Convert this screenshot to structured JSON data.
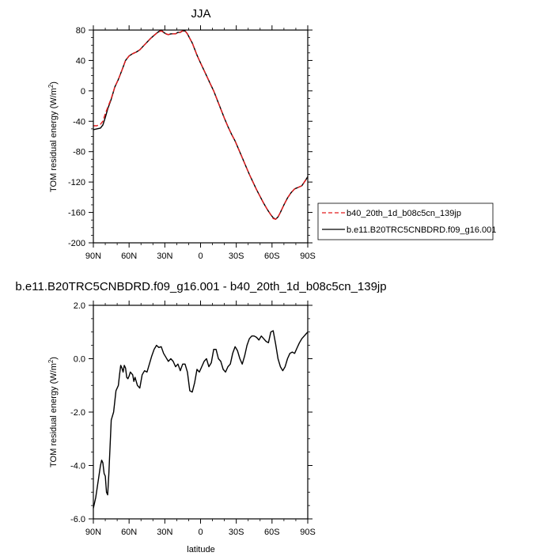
{
  "chart_data": [
    {
      "type": "line",
      "title": "JJA",
      "xlabel": "",
      "ylabel_main": "TOM residual energy (W/m",
      "ylabel_sup": "2",
      "ylabel_close": ")",
      "xlim": [
        90,
        -90
      ],
      "ylim": [
        -200,
        80
      ],
      "x_ticks": [
        90,
        60,
        30,
        0,
        -30,
        -60,
        -90
      ],
      "x_tick_labels": [
        "90N",
        "60N",
        "30N",
        "0",
        "30S",
        "60S",
        "90S"
      ],
      "y_ticks": [
        -200,
        -160,
        -120,
        -80,
        -40,
        0,
        40,
        80
      ],
      "y_tick_labels": [
        "-200",
        "-160",
        "-120",
        "-80",
        "-40",
        "0",
        "40",
        "80"
      ],
      "legend_position": "right",
      "series": [
        {
          "name": "b40_20th_1d_b08c5cn_139jp",
          "color": "#e41a1c",
          "dash": "dashed",
          "x": [
            90,
            87,
            84,
            82,
            80,
            78,
            75,
            72,
            69,
            66,
            63,
            60,
            57,
            54,
            51,
            48,
            45,
            42,
            39,
            36,
            33,
            31,
            29,
            27,
            25,
            23,
            21,
            19,
            17,
            15,
            13,
            11,
            9,
            7,
            5,
            3,
            1,
            -2,
            -5,
            -8,
            -11,
            -14,
            -17,
            -20,
            -23,
            -26,
            -29,
            -32,
            -35,
            -38,
            -41,
            -44,
            -47,
            -50,
            -53,
            -56,
            -59,
            -61,
            -63,
            -65,
            -67,
            -70,
            -73,
            -76,
            -79,
            -82,
            -85,
            -88,
            -90
          ],
          "y": [
            -46,
            -46,
            -44,
            -40,
            -30,
            -22,
            -10,
            5,
            15,
            27,
            40,
            46,
            49,
            51,
            54,
            59,
            64,
            69,
            73,
            77,
            79,
            77,
            75,
            74,
            75,
            75,
            75,
            77,
            77,
            79,
            79,
            75,
            69,
            63,
            55,
            47,
            40,
            30,
            20,
            10,
            0,
            -12,
            -24,
            -36,
            -47,
            -57,
            -66,
            -77,
            -88,
            -99,
            -110,
            -120,
            -130,
            -139,
            -148,
            -156,
            -163,
            -168,
            -169,
            -166,
            -160,
            -150,
            -141,
            -134,
            -129,
            -127,
            -125,
            -118,
            -114
          ]
        },
        {
          "name": "b.e11.B20TRC5CNBDRD.f09_g16.001",
          "color": "#000000",
          "dash": "solid",
          "x": [
            90,
            87,
            84,
            82,
            80,
            78,
            75,
            72,
            69,
            66,
            63,
            60,
            57,
            54,
            51,
            48,
            45,
            42,
            39,
            36,
            33,
            31,
            29,
            27,
            25,
            23,
            21,
            19,
            17,
            15,
            13,
            11,
            9,
            7,
            5,
            3,
            1,
            -2,
            -5,
            -8,
            -11,
            -14,
            -17,
            -20,
            -23,
            -26,
            -29,
            -32,
            -35,
            -38,
            -41,
            -44,
            -47,
            -50,
            -53,
            -56,
            -59,
            -61,
            -63,
            -65,
            -67,
            -70,
            -73,
            -76,
            -79,
            -82,
            -85,
            -88,
            -90
          ],
          "y": [
            -51,
            -50,
            -49,
            -45,
            -35,
            -24,
            -11,
            5,
            15,
            27,
            40,
            46,
            49,
            51,
            54,
            59,
            64,
            69,
            73,
            77,
            80,
            77,
            75,
            74,
            75,
            75,
            75,
            77,
            77,
            79,
            79,
            75,
            69,
            63,
            55,
            47,
            40,
            30,
            20,
            10,
            0,
            -12,
            -24,
            -36,
            -47,
            -57,
            -66,
            -77,
            -88,
            -99,
            -110,
            -120,
            -130,
            -139,
            -148,
            -156,
            -163,
            -167,
            -169,
            -166,
            -160,
            -150,
            -141,
            -134,
            -129,
            -127,
            -125,
            -118,
            -113
          ]
        }
      ]
    },
    {
      "type": "line",
      "title": "b.e11.B20TRC5CNBDRD.f09_g16.001 - b40_20th_1d_b08c5cn_139jp",
      "xlabel": "latitude",
      "ylabel_main": "TOM residual energy (W/m",
      "ylabel_sup": "2",
      "ylabel_close": ")",
      "xlim": [
        90,
        -90
      ],
      "ylim": [
        -6,
        2
      ],
      "x_ticks": [
        90,
        60,
        30,
        0,
        -30,
        -60,
        -90
      ],
      "x_tick_labels": [
        "90N",
        "60N",
        "30N",
        "0",
        "30S",
        "60S",
        "90S"
      ],
      "y_ticks": [
        -6,
        -4,
        -2,
        0,
        2
      ],
      "y_tick_labels": [
        "-6.0",
        "-4.0",
        "-2.0",
        "0.0",
        "2.0"
      ],
      "series": [
        {
          "name": "",
          "color": "#000000",
          "dash": "solid",
          "x": [
            90,
            88,
            86,
            84,
            83,
            82,
            81,
            80,
            79,
            78,
            77,
            76,
            75,
            73,
            71,
            69,
            68,
            67,
            66,
            65,
            64,
            63,
            62,
            61,
            60,
            59,
            58,
            57,
            56,
            55,
            53,
            51,
            49,
            47,
            45,
            43,
            41,
            39,
            37,
            35,
            33,
            31,
            29,
            27,
            25,
            23,
            21,
            19,
            17,
            15,
            13,
            11,
            9,
            7,
            5,
            3,
            1,
            -1,
            -3,
            -5,
            -7,
            -9,
            -11,
            -13,
            -15,
            -17,
            -19,
            -21,
            -23,
            -25,
            -27,
            -29,
            -31,
            -33,
            -35,
            -37,
            -39,
            -41,
            -43,
            -45,
            -47,
            -49,
            -51,
            -53,
            -55,
            -57,
            -59,
            -61,
            -63,
            -65,
            -67,
            -69,
            -71,
            -73,
            -75,
            -77,
            -79,
            -81,
            -83,
            -85,
            -87,
            -89,
            -90
          ],
          "y": [
            -5.6,
            -5.2,
            -4.6,
            -4.0,
            -3.8,
            -3.9,
            -4.3,
            -4.4,
            -5.0,
            -5.1,
            -4.3,
            -3.3,
            -2.3,
            -2.0,
            -1.2,
            -1.0,
            -0.6,
            -0.25,
            -0.35,
            -0.5,
            -0.25,
            -0.35,
            -0.7,
            -0.75,
            -0.65,
            -0.5,
            -0.55,
            -0.6,
            -0.85,
            -0.7,
            -1.0,
            -1.1,
            -0.6,
            -0.45,
            -0.5,
            -0.2,
            0.1,
            0.35,
            0.5,
            0.42,
            0.45,
            0.2,
            0.05,
            -0.1,
            0.0,
            -0.1,
            -0.3,
            -0.2,
            -0.45,
            -0.2,
            -0.2,
            -0.5,
            -1.2,
            -1.25,
            -0.9,
            -0.4,
            -0.5,
            -0.3,
            -0.1,
            0.0,
            -0.3,
            -0.15,
            0.35,
            0.35,
            0.0,
            -0.1,
            -0.4,
            -0.5,
            -0.3,
            -0.2,
            0.2,
            0.45,
            0.3,
            0.0,
            -0.2,
            0.1,
            0.5,
            0.75,
            0.85,
            0.85,
            0.8,
            0.7,
            0.85,
            0.75,
            0.65,
            0.6,
            1.0,
            1.05,
            0.55,
            0.0,
            -0.3,
            -0.45,
            -0.3,
            0.0,
            0.2,
            0.25,
            0.2,
            0.4,
            0.6,
            0.75,
            0.85,
            0.95,
            1.0
          ]
        }
      ]
    }
  ]
}
